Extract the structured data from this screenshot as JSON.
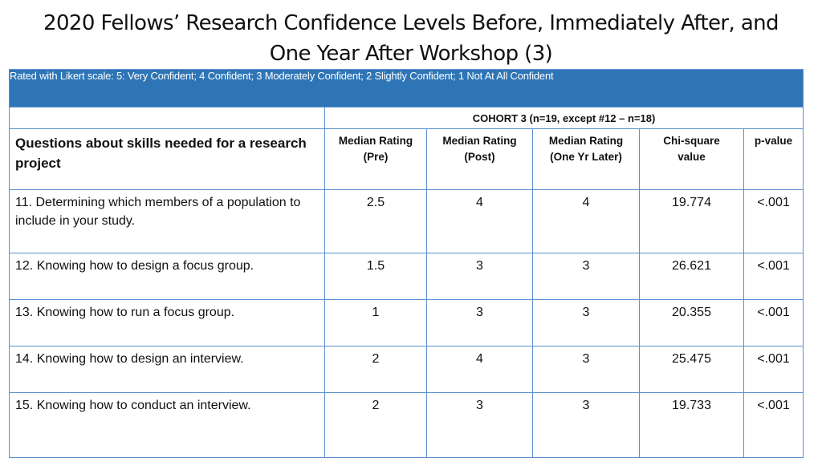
{
  "title": {
    "line1": "2020 Fellows’ Research Confidence Levels Before, Immediately After, and",
    "line2": "One Year After  Workshop (3)"
  },
  "scale_note": "Rated with Likert scale: 5: Very Confident; 4 Confident; 3 Moderately Confident; 2 Slightly Confident; 1 Not At All Confident",
  "cohort_label": "COHORT 3 (n=19, except #12 – n=18)",
  "question_header": "Questions about skills needed for a research project",
  "columns": [
    {
      "line1": "Median Rating",
      "line2": "(Pre)"
    },
    {
      "line1": "Median Rating",
      "line2": "(Post)"
    },
    {
      "line1": "Median Rating",
      "line2": "(One Yr Later)"
    },
    {
      "line1": "Chi-square",
      "line2": "value"
    },
    {
      "line1": "p-value",
      "line2": ""
    }
  ],
  "rows": [
    {
      "question": "11. Determining which members of a population to include in your study.",
      "pre": "2.5",
      "post": "4",
      "later": "4",
      "chi": "19.774",
      "p": "<.001"
    },
    {
      "question": "12. Knowing how to design a focus group.",
      "pre": "1.5",
      "post": "3",
      "later": "3",
      "chi": "26.621",
      "p": "<.001"
    },
    {
      "question": "13. Knowing how to run a focus group.",
      "pre": "1",
      "post": "3",
      "later": "3",
      "chi": "20.355",
      "p": "<.001"
    },
    {
      "question": "14. Knowing how to design an interview.",
      "pre": "2",
      "post": "4",
      "later": "3",
      "chi": "25.475",
      "p": "<.001"
    },
    {
      "question": "15. Knowing how to conduct an interview.",
      "pre": "2",
      "post": "3",
      "later": "3",
      "chi": "19.733",
      "p": "<.001"
    }
  ],
  "colors": {
    "header_band": "#2e75b6",
    "grid_line": "#5b8fcf"
  }
}
